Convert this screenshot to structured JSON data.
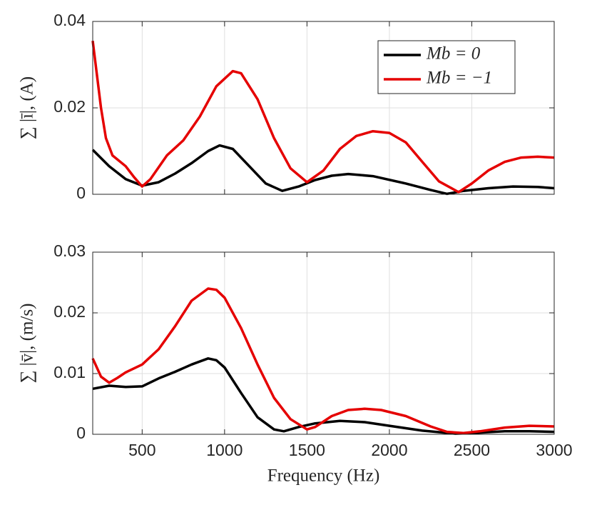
{
  "chart_data": [
    {
      "type": "line",
      "ylabel": "∑ |ī|, (A)",
      "x": [
        200,
        300,
        400,
        500,
        600,
        700,
        800,
        900,
        970,
        1050,
        1150,
        1250,
        1350,
        1450,
        1550,
        1650,
        1750,
        1900,
        2100,
        2250,
        2350,
        2450,
        2600,
        2750,
        2900,
        3000
      ],
      "series": [
        {
          "name": "Mb = 0",
          "color": "#000000",
          "values": [
            0.0103,
            0.0065,
            0.0035,
            0.002,
            0.0028,
            0.0048,
            0.0072,
            0.01,
            0.0113,
            0.0105,
            0.0065,
            0.0025,
            0.0008,
            0.0018,
            0.0033,
            0.0043,
            0.0047,
            0.0042,
            0.0025,
            0.001,
            0.0001,
            0.0008,
            0.0014,
            0.0018,
            0.0017,
            0.0014
          ]
        },
        {
          "name": "Mb = −1",
          "color": "#e50000",
          "x": [
            200,
            250,
            280,
            320,
            400,
            450,
            500,
            550,
            650,
            750,
            850,
            950,
            1050,
            1100,
            1200,
            1300,
            1400,
            1500,
            1600,
            1700,
            1800,
            1900,
            2000,
            2100,
            2200,
            2300,
            2420,
            2500,
            2600,
            2700,
            2800,
            2900,
            3000
          ],
          "values": [
            0.0355,
            0.02,
            0.013,
            0.009,
            0.0065,
            0.004,
            0.0018,
            0.0035,
            0.009,
            0.0125,
            0.018,
            0.025,
            0.0285,
            0.028,
            0.022,
            0.013,
            0.006,
            0.0028,
            0.0055,
            0.0105,
            0.0135,
            0.0146,
            0.0142,
            0.012,
            0.0075,
            0.003,
            0.0005,
            0.0025,
            0.0055,
            0.0075,
            0.0085,
            0.0087,
            0.0085
          ]
        }
      ],
      "xlim": [
        200,
        3000
      ],
      "xticks": [
        500,
        1000,
        1500,
        2000,
        2500,
        3000
      ],
      "show_xtick_labels": false,
      "ylim": [
        0,
        0.04
      ],
      "yticks": [
        0,
        0.02,
        0.04
      ],
      "grid": true,
      "legend": "upper right"
    },
    {
      "type": "line",
      "xlabel": "Frequency (Hz)",
      "ylabel": "∑ |v̄|, (m/s)",
      "x": [
        200,
        300,
        400,
        500,
        600,
        700,
        800,
        900,
        950,
        1000,
        1100,
        1200,
        1300,
        1360,
        1450,
        1550,
        1700,
        1850,
        2000,
        2200,
        2400,
        2500,
        2700,
        2850,
        3000
      ],
      "series": [
        {
          "name": "Mb = 0",
          "color": "#000000",
          "values": [
            0.0075,
            0.008,
            0.0078,
            0.0079,
            0.0092,
            0.0103,
            0.0115,
            0.0125,
            0.0122,
            0.011,
            0.0068,
            0.0028,
            0.0008,
            0.0005,
            0.0012,
            0.0018,
            0.0022,
            0.002,
            0.0014,
            0.0006,
            0.0001,
            0.0002,
            0.0005,
            0.0005,
            0.0004
          ]
        },
        {
          "name": "Mb = −1",
          "color": "#e50000",
          "x": [
            200,
            250,
            300,
            350,
            400,
            500,
            600,
            700,
            800,
            900,
            950,
            1000,
            1100,
            1200,
            1300,
            1400,
            1500,
            1550,
            1650,
            1750,
            1850,
            1950,
            2100,
            2250,
            2350,
            2450,
            2550,
            2700,
            2850,
            3000
          ],
          "values": [
            0.0125,
            0.0095,
            0.0085,
            0.0093,
            0.0102,
            0.0115,
            0.014,
            0.0178,
            0.022,
            0.024,
            0.0238,
            0.0225,
            0.0175,
            0.0115,
            0.006,
            0.0025,
            0.0008,
            0.0012,
            0.003,
            0.004,
            0.0042,
            0.004,
            0.003,
            0.0013,
            0.0004,
            0.0002,
            0.0005,
            0.0011,
            0.0014,
            0.0013
          ]
        }
      ],
      "xlim": [
        200,
        3000
      ],
      "xticks": [
        500,
        1000,
        1500,
        2000,
        2500,
        3000
      ],
      "show_xtick_labels": true,
      "ylim": [
        0,
        0.03
      ],
      "yticks": [
        0,
        0.01,
        0.02,
        0.03
      ],
      "grid": true,
      "legend": "none"
    }
  ]
}
